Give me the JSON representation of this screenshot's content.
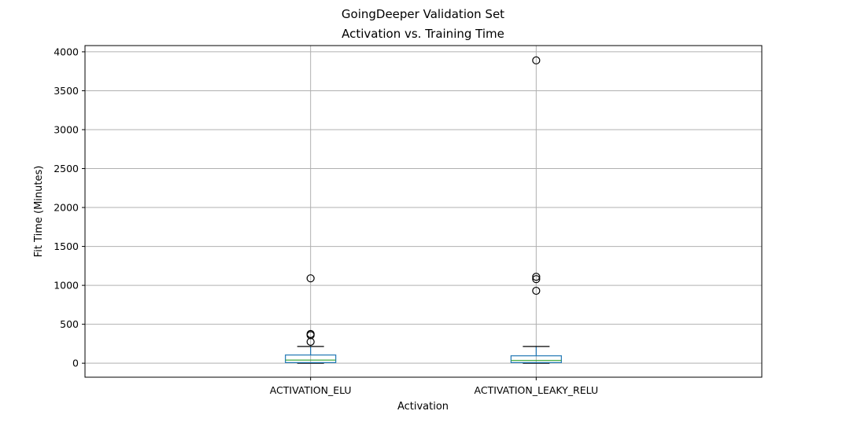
{
  "suptitle": "GoingDeeper Validation Set",
  "chart_data": {
    "type": "box",
    "title": "Activation vs. Training Time",
    "xlabel": "Activation",
    "ylabel": "Fit Time (Minutes)",
    "ylim": [
      -180,
      4080
    ],
    "yticks": [
      0,
      500,
      1000,
      1500,
      2000,
      2500,
      3000,
      3500,
      4000
    ],
    "grid": true,
    "categories": [
      "ACTIVATION_ELU",
      "ACTIVATION_LEAKY_RELU"
    ],
    "boxes": [
      {
        "category": "ACTIVATION_ELU",
        "whisker_low": 0,
        "q1": 8,
        "median": 40,
        "q3": 105,
        "whisker_high": 215,
        "fliers": [
          1090,
          375,
          360,
          275
        ]
      },
      {
        "category": "ACTIVATION_LEAKY_RELU",
        "whisker_low": 0,
        "q1": 8,
        "median": 35,
        "q3": 95,
        "whisker_high": 215,
        "fliers": [
          3890,
          1110,
          1080,
          930
        ]
      }
    ]
  }
}
